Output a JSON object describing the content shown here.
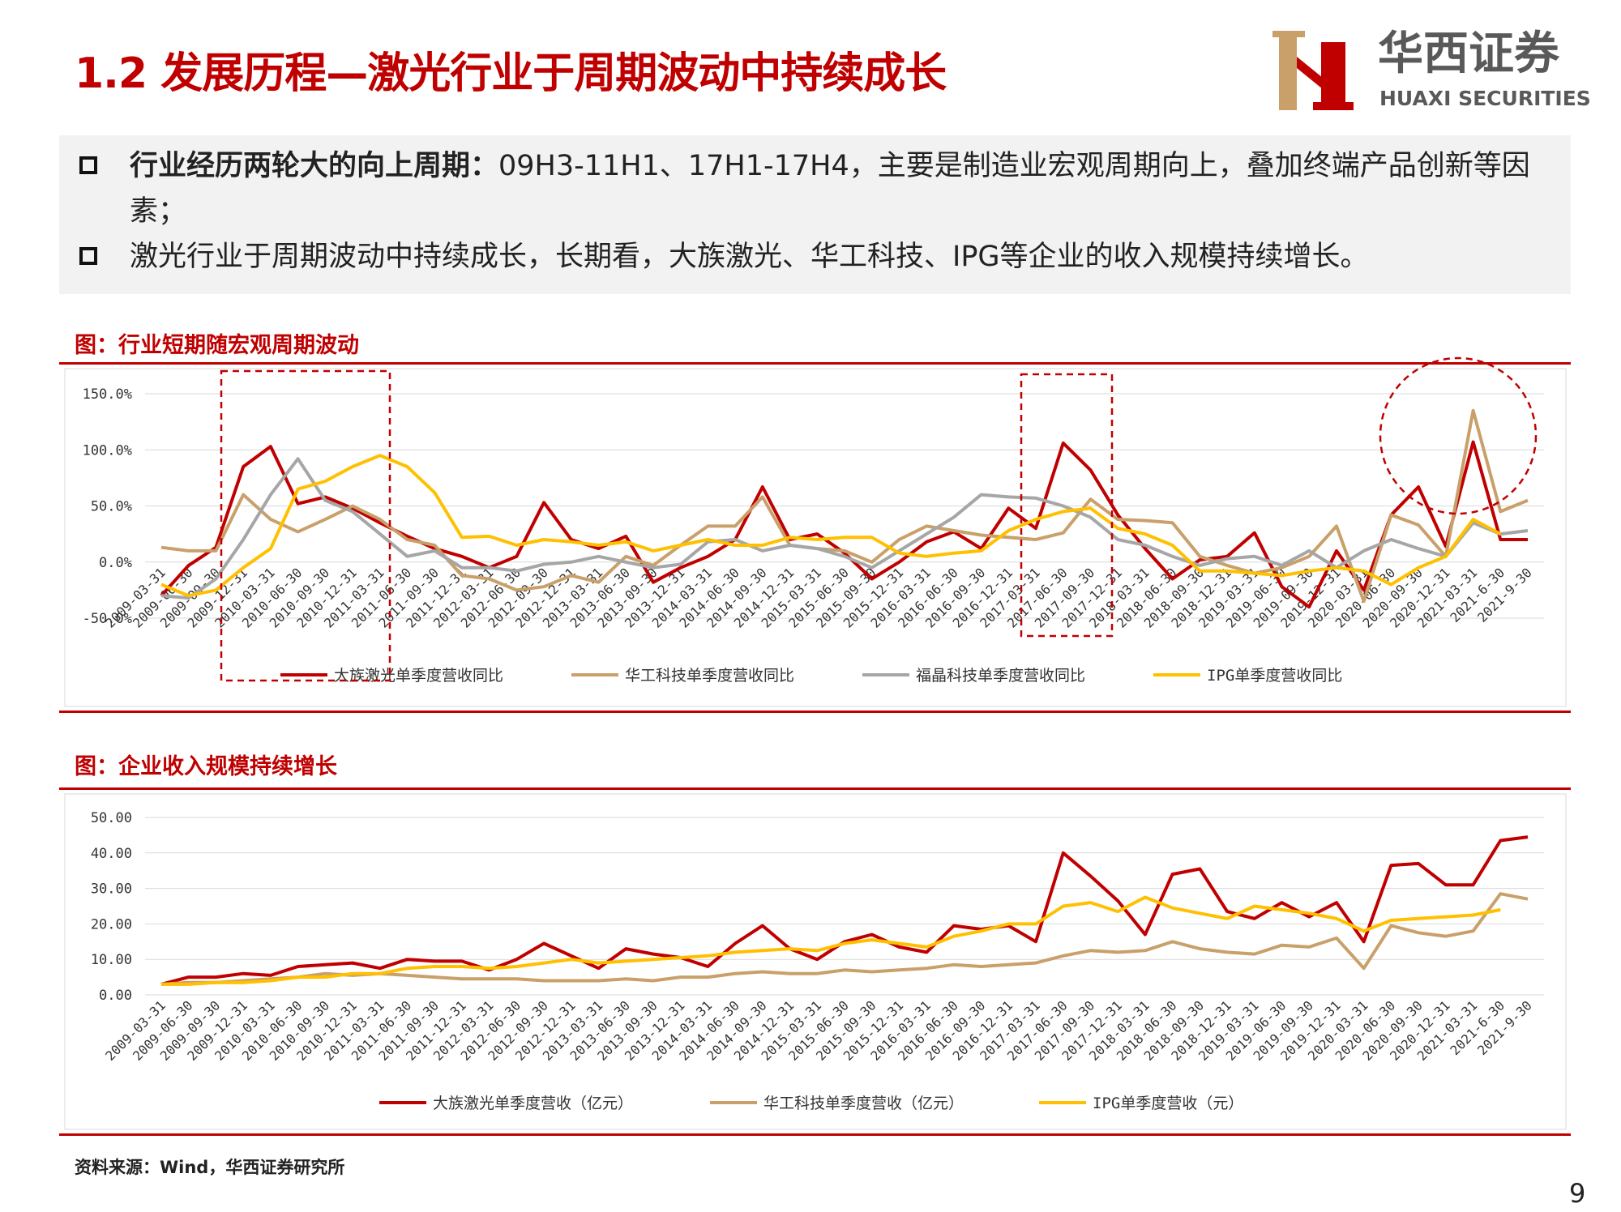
{
  "header": {
    "title": "1.2 发展历程—激光行业于周期波动中持续成长",
    "logo_cn": "华西证券",
    "logo_en": "HUAXI SECURITIES"
  },
  "bullets": [
    {
      "bold": "行业经历两轮大的向上周期：",
      "text": "09H3-11H1、17H1-17H4，主要是制造业宏观周期向上，叠加终端产品创新等因素；"
    },
    {
      "text": "激光行业于周期波动中持续成长，长期看，大族激光、华工科技、IPG等企业的收入规模持续增长。"
    }
  ],
  "chart_data": [
    {
      "type": "line",
      "title": "图：行业短期随宏观周期波动",
      "categories": [
        "2009-03-31",
        "2009-06-30",
        "2009-09-30",
        "2009-12-31",
        "2010-03-31",
        "2010-06-30",
        "2010-09-30",
        "2010-12-31",
        "2011-03-31",
        "2011-06-30",
        "2011-09-30",
        "2011-12-31",
        "2012-03-31",
        "2012-06-30",
        "2012-09-30",
        "2012-12-31",
        "2013-03-31",
        "2013-06-30",
        "2013-09-30",
        "2013-12-31",
        "2014-03-31",
        "2014-06-30",
        "2014-09-30",
        "2014-12-31",
        "2015-03-31",
        "2015-06-30",
        "2015-09-30",
        "2015-12-31",
        "2016-03-31",
        "2016-06-30",
        "2016-09-30",
        "2016-12-31",
        "2017-03-31",
        "2017-06-30",
        "2017-09-30",
        "2017-12-31",
        "2018-03-31",
        "2018-06-30",
        "2018-09-30",
        "2018-12-31",
        "2019-03-31",
        "2019-06-30",
        "2019-09-30",
        "2019-12-31",
        "2020-03-31",
        "2020-06-30",
        "2020-09-30",
        "2020-12-31",
        "2021-03-31",
        "2021-6-30",
        "2021-9-30"
      ],
      "series": [
        {
          "name": "大族激光单季度营收同比",
          "color": "#c00000",
          "values": [
            -30,
            -3,
            13,
            85,
            103,
            52,
            58,
            48,
            35,
            23,
            12,
            5,
            -5,
            5,
            53,
            20,
            12,
            23,
            -18,
            -5,
            5,
            20,
            67,
            20,
            25,
            8,
            -15,
            0,
            18,
            27,
            12,
            48,
            30,
            106,
            82,
            42,
            12,
            -15,
            2,
            5,
            26,
            -22,
            -40,
            10,
            -25,
            42,
            67,
            14,
            107,
            20,
            20
          ]
        },
        {
          "name": "华工科技单季度营收同比",
          "color": "#c9a06a",
          "values": [
            13,
            10,
            10,
            60,
            38,
            27,
            38,
            50,
            38,
            20,
            15,
            -12,
            -15,
            -25,
            -22,
            -12,
            -18,
            5,
            -3,
            15,
            32,
            32,
            58,
            15,
            12,
            10,
            0,
            20,
            32,
            28,
            24,
            22,
            20,
            26,
            56,
            38,
            37,
            35,
            5,
            -3,
            -10,
            -5,
            5,
            32,
            -35,
            42,
            33,
            5,
            135,
            45,
            55
          ]
        },
        {
          "name": "福晶科技单季度营收同比",
          "color": "#a6a6a6",
          "values": [
            -30,
            -32,
            -15,
            20,
            60,
            92,
            55,
            45,
            25,
            5,
            10,
            -5,
            -5,
            -8,
            -2,
            0,
            5,
            0,
            -5,
            -2,
            18,
            20,
            10,
            15,
            12,
            5,
            -5,
            10,
            25,
            40,
            60,
            58,
            57,
            50,
            40,
            20,
            15,
            5,
            -3,
            3,
            5,
            -3,
            10,
            -5,
            10,
            20,
            12,
            5,
            35,
            25,
            28
          ]
        },
        {
          "name": "IPG单季度营收同比",
          "color": "#ffc000",
          "values": [
            -20,
            -30,
            -25,
            -5,
            12,
            65,
            72,
            85,
            95,
            85,
            62,
            22,
            23,
            15,
            20,
            18,
            15,
            18,
            10,
            15,
            20,
            15,
            15,
            22,
            20,
            22,
            22,
            8,
            5,
            8,
            10,
            28,
            38,
            45,
            48,
            30,
            25,
            15,
            -8,
            -8,
            -10,
            -12,
            -8,
            -5,
            -8,
            -20,
            -5,
            5,
            38,
            25,
            null
          ]
        }
      ],
      "ylim": [
        -50,
        150
      ],
      "yticks": [
        {
          "value": -50,
          "label": "-50.0%"
        },
        {
          "value": 0,
          "label": "0.0%"
        },
        {
          "value": 50,
          "label": "50.0%"
        },
        {
          "value": 100,
          "label": "100.0%"
        },
        {
          "value": 150,
          "label": "150.0%"
        }
      ],
      "grid": true,
      "legend": "bottom"
    },
    {
      "type": "line",
      "title": "图：企业收入规模持续增长",
      "categories": [
        "2009-03-31",
        "2009-06-30",
        "2009-09-30",
        "2009-12-31",
        "2010-03-31",
        "2010-06-30",
        "2010-09-30",
        "2010-12-31",
        "2011-03-31",
        "2011-06-30",
        "2011-09-30",
        "2011-12-31",
        "2012-03-31",
        "2012-06-30",
        "2012-09-30",
        "2012-12-31",
        "2013-03-31",
        "2013-06-30",
        "2013-09-30",
        "2013-12-31",
        "2014-03-31",
        "2014-06-30",
        "2014-09-30",
        "2014-12-31",
        "2015-03-31",
        "2015-06-30",
        "2015-09-30",
        "2015-12-31",
        "2016-03-31",
        "2016-06-30",
        "2016-09-30",
        "2016-12-31",
        "2017-03-31",
        "2017-06-30",
        "2017-09-30",
        "2017-12-31",
        "2018-03-31",
        "2018-06-30",
        "2018-09-30",
        "2018-12-31",
        "2019-03-31",
        "2019-06-30",
        "2019-09-30",
        "2019-12-31",
        "2020-03-31",
        "2020-06-30",
        "2020-09-30",
        "2020-12-31",
        "2021-03-31",
        "2021-6-30",
        "2021-9-30"
      ],
      "series": [
        {
          "name": "大族激光单季度营收（亿元）",
          "color": "#c00000",
          "values": [
            3,
            5,
            5,
            6,
            5.5,
            8,
            8.5,
            9,
            7.5,
            10,
            9.5,
            9.5,
            7,
            10,
            14.5,
            11,
            7.5,
            13,
            11.5,
            10.5,
            8,
            14.5,
            19.5,
            13,
            10,
            15,
            17,
            13.5,
            12,
            19.5,
            18.5,
            19.5,
            15,
            40,
            33.5,
            26.5,
            17,
            34,
            35.5,
            23.5,
            21.5,
            26,
            22,
            26,
            15,
            36.5,
            37,
            31,
            31,
            43.5,
            44.5
          ]
        },
        {
          "name": "华工科技单季度营收（亿元）",
          "color": "#c9a06a",
          "values": [
            3,
            3.5,
            3.5,
            4,
            4.5,
            5,
            6,
            5.5,
            6,
            5.5,
            5,
            4.5,
            4.5,
            4.5,
            4,
            4,
            4,
            4.5,
            4,
            5,
            5,
            6,
            6.5,
            6,
            6,
            7,
            6.5,
            7,
            7.5,
            8.5,
            8,
            8.5,
            9,
            11,
            12.5,
            12,
            12.5,
            15,
            13,
            12,
            11.5,
            14,
            13.5,
            16,
            7.5,
            19.5,
            17.5,
            16.5,
            18,
            28.5,
            27
          ]
        },
        {
          "name": "IPG单季度营收（元）",
          "color": "#ffc000",
          "values": [
            3,
            3,
            3.5,
            3.5,
            4,
            5,
            5,
            6,
            6,
            7.5,
            8,
            8,
            7.5,
            8,
            9,
            10,
            9,
            9.5,
            10,
            10.5,
            11,
            12,
            12.5,
            13,
            12.5,
            14.5,
            15.5,
            14.5,
            13.5,
            16.5,
            18,
            20,
            20,
            25,
            26,
            23.5,
            27.5,
            24.5,
            23,
            21.5,
            25,
            24,
            23,
            21.5,
            18,
            21,
            21.5,
            22,
            22.5,
            24,
            null
          ]
        }
      ],
      "ylim": [
        0,
        50
      ],
      "yticks": [
        {
          "value": 0,
          "label": "0.00"
        },
        {
          "value": 10,
          "label": "10.00"
        },
        {
          "value": 20,
          "label": "20.00"
        },
        {
          "value": 30,
          "label": "30.00"
        },
        {
          "value": 40,
          "label": "40.00"
        },
        {
          "value": 50,
          "label": "50.00"
        }
      ],
      "grid": true,
      "legend": "bottom"
    }
  ],
  "source": "资料来源：Wind，华西证券研究所",
  "page_number": "9"
}
